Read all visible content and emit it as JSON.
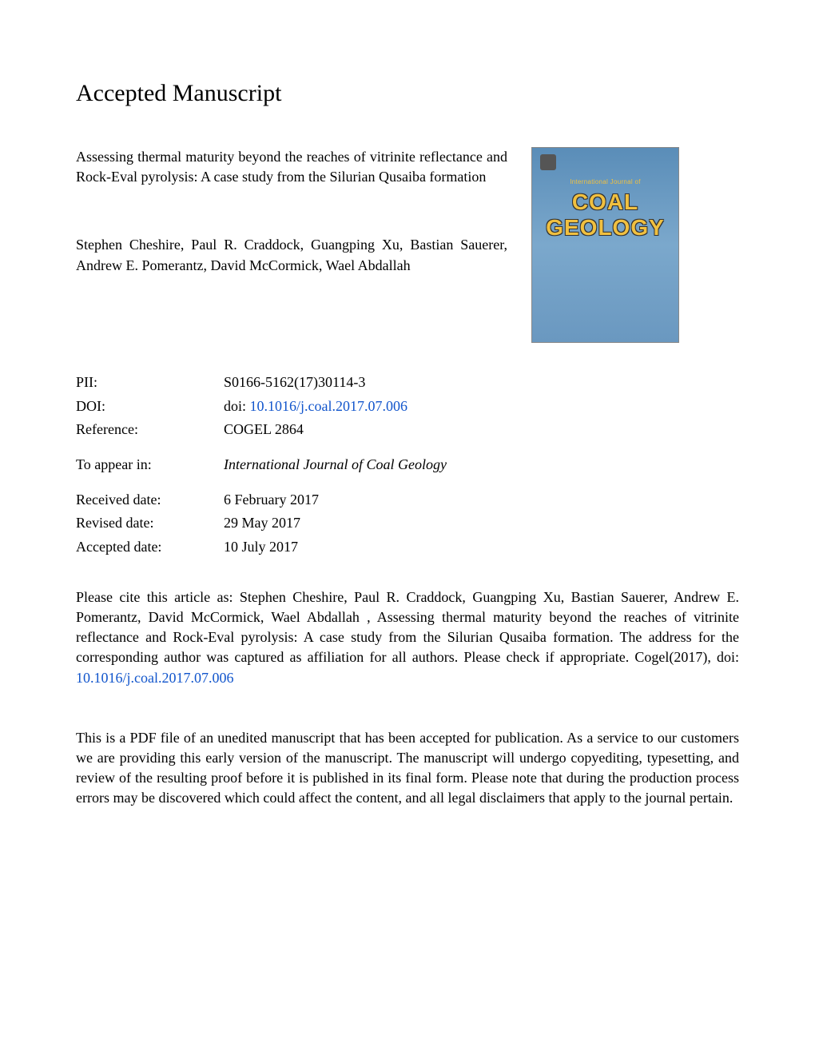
{
  "heading": "Accepted Manuscript",
  "article": {
    "title": "Assessing thermal maturity beyond the reaches of vitrinite reflectance and Rock-Eval pyrolysis: A case study from the Silurian Qusaiba formation",
    "authors": "Stephen Cheshire, Paul R. Craddock, Guangping Xu, Bastian Sauerer, Andrew E. Pomerantz, David McCormick, Wael Abdallah"
  },
  "journal_cover": {
    "subtitle": "International Journal of",
    "title_line1": "COAL",
    "title_line2": "GEOLOGY",
    "background_gradient": [
      "#5a8db8",
      "#7ba8cc",
      "#6a98c0"
    ],
    "title_color": "#f0c040"
  },
  "metadata": {
    "pii": {
      "label": "PII:",
      "value": "S0166-5162(17)30114-3"
    },
    "doi": {
      "label": "DOI:",
      "prefix": "doi: ",
      "link": "10.1016/j.coal.2017.07.006"
    },
    "reference": {
      "label": "Reference:",
      "value": "COGEL 2864"
    },
    "appear": {
      "label": "To appear in:",
      "value": "International Journal of Coal Geology"
    },
    "received": {
      "label": "Received date:",
      "value": "6 February 2017"
    },
    "revised": {
      "label": "Revised date:",
      "value": "29 May 2017"
    },
    "accepted": {
      "label": "Accepted date:",
      "value": "10 July 2017"
    }
  },
  "citation": {
    "text": "Please cite this article as: Stephen Cheshire, Paul R. Craddock, Guangping Xu, Bastian Sauerer, Andrew E. Pomerantz, David McCormick, Wael Abdallah , Assessing thermal maturity beyond the reaches of vitrinite reflectance and Rock-Eval pyrolysis: A case study from the Silurian Qusaiba formation. The address for the corresponding author was captured as affiliation for all authors. Please check if appropriate. Cogel(2017), doi: ",
    "link": "10.1016/j.coal.2017.07.006"
  },
  "disclaimer": "This is a PDF file of an unedited manuscript that has been accepted for publication. As a service to our customers we are providing this early version of the manuscript. The manuscript will undergo copyediting, typesetting, and review of the resulting proof before it is published in its final form. Please note that during the production process errors may be discovered which could affect the content, and all legal disclaimers that apply to the journal pertain.",
  "colors": {
    "text": "#000000",
    "link": "#1155cc",
    "background": "#ffffff"
  }
}
